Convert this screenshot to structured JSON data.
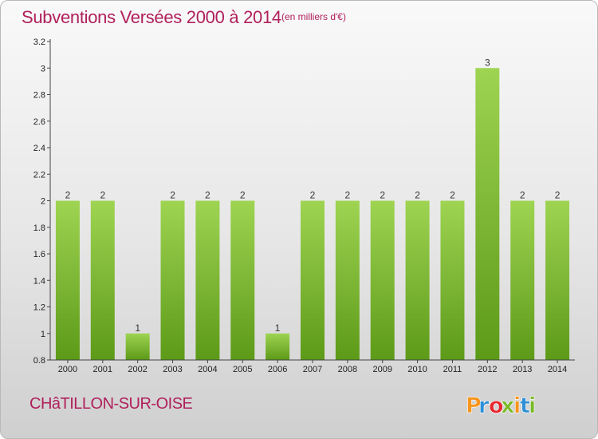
{
  "title": "Subventions Versées 2000 à 2014",
  "subtitle": "(en milliers d'€)",
  "commune": "CHâTILLON-SUR-OISE",
  "logo": {
    "text": "Proxiti",
    "colors": [
      "#f7941d",
      "#2d8fd5",
      "#e8262d",
      "#7ab929",
      "#f7941d",
      "#2d8fd5",
      "#7ab929"
    ]
  },
  "colors": {
    "title": "#b0205c",
    "bar_light": "#9ed452",
    "bar_dark": "#5c9a18",
    "axis": "#444444"
  },
  "chart_data": {
    "type": "bar",
    "title": "Subventions Versées 2000 à 2014",
    "subtitle": "(en milliers d'€)",
    "categories": [
      "2000",
      "2001",
      "2002",
      "2003",
      "2004",
      "2005",
      "2006",
      "2007",
      "2008",
      "2009",
      "2010",
      "2011",
      "2012",
      "2013",
      "2014"
    ],
    "values": [
      2,
      2,
      1,
      2,
      2,
      2,
      1,
      2,
      2,
      2,
      2,
      2,
      3,
      2,
      2
    ],
    "value_labels": [
      "2",
      "2",
      "1",
      "2",
      "2",
      "2",
      "1",
      "2",
      "2",
      "2",
      "2",
      "2",
      "3",
      "2",
      "2"
    ],
    "ylim": [
      0.8,
      3.2
    ],
    "yticks": [
      0.8,
      1,
      1.2,
      1.4,
      1.6,
      1.8,
      2,
      2.2,
      2.4,
      2.6,
      2.8,
      3,
      3.2
    ],
    "ytick_labels": [
      "0.8",
      "1",
      "1.2",
      "1.4",
      "1.6",
      "1.8",
      "2",
      "2.2",
      "2.4",
      "2.6",
      "2.8",
      "3",
      "3.2"
    ],
    "grid": false,
    "legend": "none"
  }
}
